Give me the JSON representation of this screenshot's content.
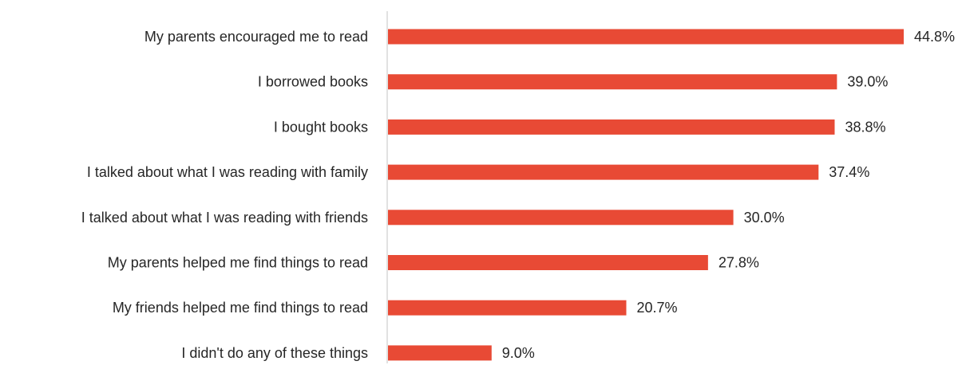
{
  "chart_data": {
    "type": "bar",
    "orientation": "horizontal",
    "categories": [
      "My parents encouraged me to read",
      "I borrowed books",
      "I bought books",
      "I talked about what I was reading with family",
      "I talked about what I was reading with friends",
      "My parents helped me find things to read",
      "My friends helped me find things to read",
      "I didn't do any of these things"
    ],
    "values": [
      44.8,
      39.0,
      38.8,
      37.4,
      30.0,
      27.8,
      20.7,
      9.0
    ],
    "value_labels": [
      "44.8%",
      "39.0%",
      "38.8%",
      "37.4%",
      "30.0%",
      "27.8%",
      "20.7%",
      "9.0%"
    ],
    "xlim": [
      0,
      44.8
    ],
    "grid": false,
    "legend": "none",
    "colors": {
      "bar": "#E84A35",
      "axis": "#D9D9D9",
      "text": "#262626"
    }
  }
}
